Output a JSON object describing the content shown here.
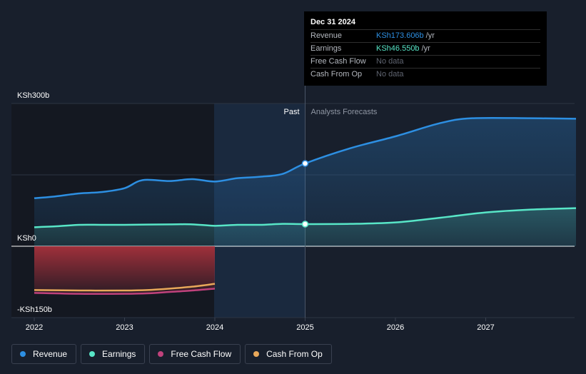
{
  "chart_data": {
    "type": "line",
    "y_ticks": [
      {
        "label": "KSh300b",
        "value": 300
      },
      {
        "label": "KSh0",
        "value": 0
      },
      {
        "label": "-KSh150b",
        "value": -150
      }
    ],
    "x_ticks": [
      "2022",
      "2023",
      "2024",
      "2025",
      "2026",
      "2027"
    ],
    "ylim": [
      -150,
      300
    ],
    "xlim": [
      2022,
      2028
    ],
    "divider": {
      "x": 2025,
      "past_label": "Past",
      "forecast_label": "Analysts Forecasts"
    },
    "series": [
      {
        "name": "Revenue",
        "color": "#2d8fe2",
        "fill": true,
        "points": [
          [
            2022.0,
            101
          ],
          [
            2022.2,
            104
          ],
          [
            2022.5,
            111
          ],
          [
            2022.75,
            114
          ],
          [
            2023.0,
            122
          ],
          [
            2023.2,
            139
          ],
          [
            2023.5,
            137
          ],
          [
            2023.75,
            141
          ],
          [
            2024.0,
            136
          ],
          [
            2024.25,
            143
          ],
          [
            2024.5,
            146
          ],
          [
            2024.75,
            152
          ],
          [
            2025.0,
            174
          ],
          [
            2025.5,
            206
          ],
          [
            2026.0,
            231
          ],
          [
            2026.5,
            259
          ],
          [
            2026.85,
            269
          ],
          [
            2027.5,
            269
          ],
          [
            2028.0,
            268
          ]
        ]
      },
      {
        "name": "Earnings",
        "color": "#58e6c7",
        "fill": true,
        "points": [
          [
            2022.0,
            40
          ],
          [
            2022.25,
            42
          ],
          [
            2022.5,
            45
          ],
          [
            2022.75,
            45
          ],
          [
            2023.0,
            45
          ],
          [
            2023.5,
            46
          ],
          [
            2023.75,
            46
          ],
          [
            2024.0,
            43
          ],
          [
            2024.25,
            45
          ],
          [
            2024.5,
            45
          ],
          [
            2024.75,
            47
          ],
          [
            2025.0,
            46.55
          ],
          [
            2025.5,
            47
          ],
          [
            2026.0,
            50
          ],
          [
            2026.5,
            60
          ],
          [
            2027.0,
            71
          ],
          [
            2027.5,
            77
          ],
          [
            2028.0,
            80
          ]
        ]
      },
      {
        "name": "Free Cash Flow",
        "color": "#c0427c",
        "fill": false,
        "points": [
          [
            2022.0,
            -98
          ],
          [
            2022.5,
            -100
          ],
          [
            2023.0,
            -100
          ],
          [
            2023.25,
            -99
          ],
          [
            2023.5,
            -96
          ],
          [
            2023.75,
            -93
          ],
          [
            2024.0,
            -89
          ]
        ]
      },
      {
        "name": "Cash From Op",
        "color": "#e8a85a",
        "fill": false,
        "points": [
          [
            2022.0,
            -92
          ],
          [
            2022.5,
            -93
          ],
          [
            2023.0,
            -93
          ],
          [
            2023.25,
            -92
          ],
          [
            2023.5,
            -89
          ],
          [
            2023.75,
            -85
          ],
          [
            2024.0,
            -79
          ]
        ]
      }
    ],
    "negative_fill": {
      "from": 2022.0,
      "to": 2024.0,
      "series": "Free Cash Flow"
    },
    "highlight_x": 2025.0,
    "legend_position": "bottom-left"
  },
  "tooltip": {
    "date": "Dec 31 2024",
    "rows": [
      {
        "name": "Revenue",
        "value": "KSh173.606b",
        "unit": "/yr",
        "color": "#2d8fe2"
      },
      {
        "name": "Earnings",
        "value": "KSh46.550b",
        "unit": "/yr",
        "color": "#58e6c7"
      },
      {
        "name": "Free Cash Flow",
        "value": "No data",
        "unit": ""
      },
      {
        "name": "Cash From Op",
        "value": "No data",
        "unit": ""
      }
    ]
  },
  "legend": [
    {
      "label": "Revenue",
      "color": "#2d8fe2"
    },
    {
      "label": "Earnings",
      "color": "#58e6c7"
    },
    {
      "label": "Free Cash Flow",
      "color": "#c0427c"
    },
    {
      "label": "Cash From Op",
      "color": "#e8a85a"
    }
  ]
}
